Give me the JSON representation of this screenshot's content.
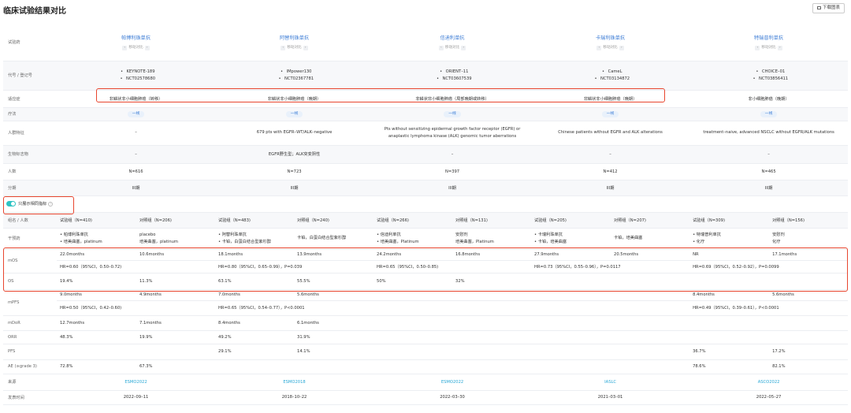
{
  "page": {
    "title": "临床试验结果对比",
    "download_label": "下载图表"
  },
  "labels": {
    "drug": "试验药",
    "code": "代号 / 登记号",
    "indication": "适应症",
    "therapy": "疗法",
    "population": "人群特征",
    "biomarker": "生物标志物",
    "n": "人数",
    "phase": "分期",
    "toggle": "只展示相同指标",
    "group": "组名 / 人数",
    "intervention": "干预药",
    "mos": "mOS",
    "os": "OS",
    "mpfs": "mPFS",
    "mdor": "mDoR",
    "orr": "ORR",
    "pfs": "PFS",
    "ae": "AE (≥grade 3)",
    "source": "来源",
    "date": "发表时间"
  },
  "move_label": "移动对比",
  "trials": [
    {
      "drug": "帕博利珠单抗",
      "trial": "KEYNOTE-189",
      "nct": "NCT02578680",
      "indication": "非鳞状非小细胞肺癌（转移）",
      "therapy": "一线",
      "population": "–",
      "biomarker": "–",
      "n": "N=616",
      "phase": "III期",
      "groups": [
        {
          "name": "试验组（N=410)",
          "drugs": [
            "• 帕博利珠单抗",
            "• 培美曲塞，platinum"
          ]
        },
        {
          "name": "对照组（N=206)",
          "drugs": [
            "placebo",
            "培美曲塞，platinum"
          ]
        }
      ],
      "mos": [
        "22.0months",
        "10.6months"
      ],
      "mos_hr": "HR=0.60（95%CI，0.50–0.72)",
      "os": [
        "19.4%",
        "11.3%"
      ],
      "mpfs": [
        "9.0months",
        "4.9months"
      ],
      "mpfs_hr": "HR=0.50（95%CI，0.42–0.60)",
      "mdor": [
        "12.7months",
        "7.1months"
      ],
      "orr": [
        "48.3%",
        "19.9%"
      ],
      "pfs": [
        "",
        ""
      ],
      "ae": [
        "72.8%",
        "67.3%"
      ],
      "source": "ESMO2022",
      "date": "2022–09–11"
    },
    {
      "drug": "阿替利珠单抗",
      "trial": "IMpower130",
      "nct": "NCT02367781",
      "indication": "非鳞状非小细胞肺癌（晚期）",
      "therapy": "一线",
      "population": "679 pts with EGFR–WT/ALK–negative",
      "biomarker": "EGFR野生型；ALK突变阴性",
      "n": "N=723",
      "phase": "III期",
      "groups": [
        {
          "name": "试验组（N=483)",
          "drugs": [
            "• 阿替利珠单抗",
            "• 卡铂，白蛋白结合型紫杉醇"
          ]
        },
        {
          "name": "对照组（N=240)",
          "drugs": [
            "卡铂，白蛋白结合型紫杉醇"
          ]
        }
      ],
      "mos": [
        "18.1months",
        "13.9months"
      ],
      "mos_hr": "HR=0.80（95%CI，0.65–0.99），P=0.039",
      "os": [
        "63.1%",
        "55.5%"
      ],
      "mpfs": [
        "7.0months",
        "5.6months"
      ],
      "mpfs_hr": "HR=0.65（95%CI，0.54–0.77），P<0.0001",
      "mdor": [
        "8.4months",
        "6.1months"
      ],
      "orr": [
        "49.2%",
        "31.9%"
      ],
      "pfs": [
        "29.1%",
        "14.1%"
      ],
      "ae": [
        "",
        ""
      ],
      "source": "ESMO2018",
      "date": "2018–10–22"
    },
    {
      "drug": "信迪利单抗",
      "trial": "ORIENT–11",
      "nct": "NCT03607539",
      "indication": "非鳞状非小细胞肺癌（局部晚期或转移）",
      "therapy": "一线",
      "population": "Pts without sensitizing epidermal growth factor receptor (EGFR) or anaplastic lymphoma kinase (ALK) genomic tumor aberrations",
      "biomarker": "–",
      "n": "N=397",
      "phase": "III期",
      "groups": [
        {
          "name": "试验组（N=266)",
          "drugs": [
            "• 信迪利单抗",
            "• 培美曲塞，Platinum"
          ]
        },
        {
          "name": "对照组（N=131)",
          "drugs": [
            "安慰剂",
            "培美曲塞，Platinum"
          ]
        }
      ],
      "mos": [
        "24.2months",
        "16.8months"
      ],
      "mos_hr": "HR=0.65（95%CI，0.50–0.85)",
      "os": [
        "50%",
        "32%"
      ],
      "mpfs": [
        "",
        ""
      ],
      "mpfs_hr": "",
      "mdor": [
        "",
        ""
      ],
      "orr": [
        "",
        ""
      ],
      "pfs": [
        "",
        ""
      ],
      "ae": [
        "",
        ""
      ],
      "source": "ESMO2022",
      "date": "2022–03–30"
    },
    {
      "drug": "卡瑞利珠单抗",
      "trial": "CameL",
      "nct": "NCT03134872",
      "indication": "非鳞状非小细胞肺癌（晚期）",
      "therapy": "一线",
      "population": "Chinese patients without EGFR and ALK alterations",
      "biomarker": "–",
      "n": "N=412",
      "phase": "III期",
      "groups": [
        {
          "name": "试验组（N=205)",
          "drugs": [
            "• 卡瑞利珠单抗",
            "• 卡铂，培美曲塞"
          ]
        },
        {
          "name": "对照组（N=207)",
          "drugs": [
            "卡铂，培美曲塞"
          ]
        }
      ],
      "mos": [
        "27.9months",
        "20.5months"
      ],
      "mos_hr": "HR=0.73（95%CI，0.55–0.96），P=0.0117",
      "os": [
        "",
        ""
      ],
      "mpfs": [
        "",
        ""
      ],
      "mpfs_hr": "",
      "mdor": [
        "",
        ""
      ],
      "orr": [
        "",
        ""
      ],
      "pfs": [
        "",
        ""
      ],
      "ae": [
        "",
        ""
      ],
      "source": "IASLC",
      "date": "2021–03–01"
    },
    {
      "drug": "特瑞普利单抗",
      "trial": "CHOICE–01",
      "nct": "NCT03856411",
      "indication": "非小细胞肺癌（晚期）",
      "therapy": "一线",
      "population": "treatment–naive, advanced NSCLC without EGFR/ALK mutations",
      "biomarker": "–",
      "n": "N=465",
      "phase": "III期",
      "groups": [
        {
          "name": "试验组（N=309)",
          "drugs": [
            "• 特瑞普利单抗",
            "• 化疗"
          ]
        },
        {
          "name": "对照组（N=156)",
          "drugs": [
            "安慰剂",
            "化疗"
          ]
        }
      ],
      "mos": [
        "NR",
        "17.1months"
      ],
      "mos_hr": "HR=0.69（95%CI，0.52–0.92），P=0.0099",
      "os": [
        "",
        ""
      ],
      "mpfs": [
        "8.4months",
        "5.6months"
      ],
      "mpfs_hr": "HR=0.49（95%CI，0.39–0.61），P<0.0001",
      "mdor": [
        "",
        ""
      ],
      "orr": [
        "",
        ""
      ],
      "pfs": [
        "36.7%",
        "17.2%"
      ],
      "ae": [
        "78.6%",
        "82.1%"
      ],
      "source": "ASCO2022",
      "date": "2022–05–27"
    }
  ]
}
